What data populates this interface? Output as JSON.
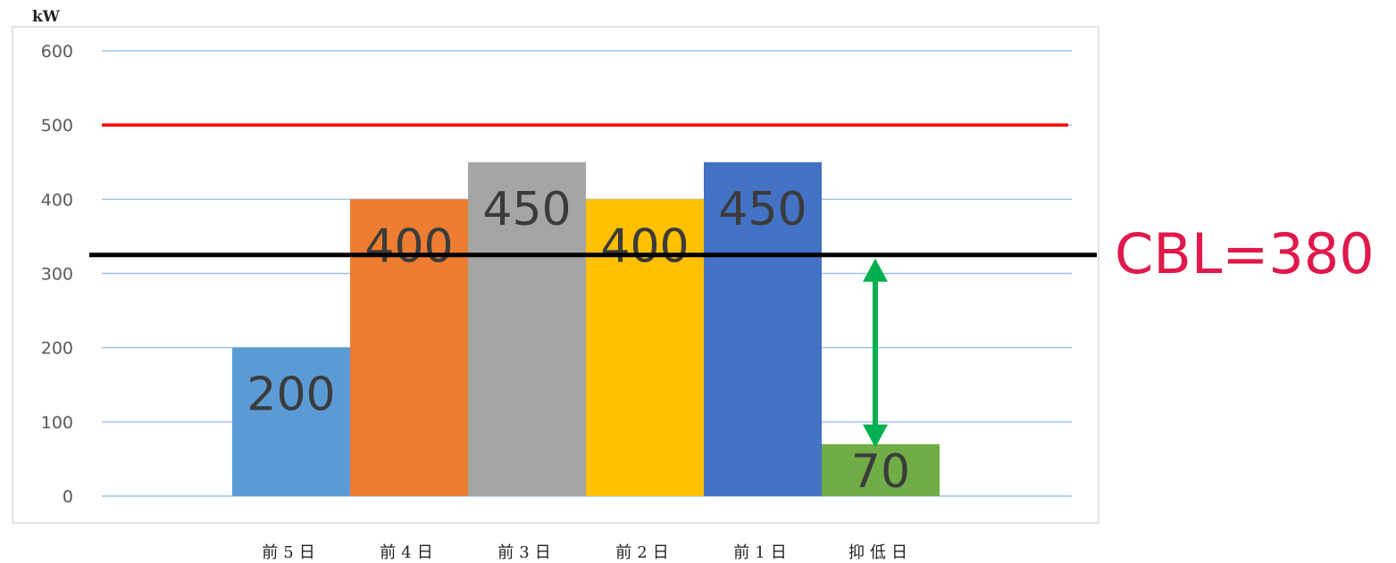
{
  "chart_data": {
    "type": "bar",
    "ylabel": "kW",
    "ylim": [
      0,
      600
    ],
    "yticks": [
      "0",
      "100",
      "200",
      "300",
      "400",
      "500",
      "600"
    ],
    "categories": [
      "前5日",
      "前4日",
      "前3日",
      "前2日",
      "前1日",
      "抑低日"
    ],
    "values": [
      200,
      400,
      450,
      400,
      450,
      70
    ],
    "value_labels": [
      "200",
      "400",
      "450",
      "400",
      "450",
      "70"
    ],
    "bar_colors": [
      "#5b9bd5",
      "#ed7d31",
      "#a5a5a5",
      "#ffc000",
      "#4472c4",
      "#70ad47"
    ],
    "grid": true,
    "reference_lines": [
      {
        "value": 500,
        "color": "#ff0000"
      },
      {
        "value": 325,
        "color": "#000000"
      }
    ],
    "annotation": {
      "text": "CBL=380",
      "color": "#e0194b",
      "arrow_color": "#00b050",
      "arrow_from": 325,
      "arrow_to": 70
    }
  }
}
